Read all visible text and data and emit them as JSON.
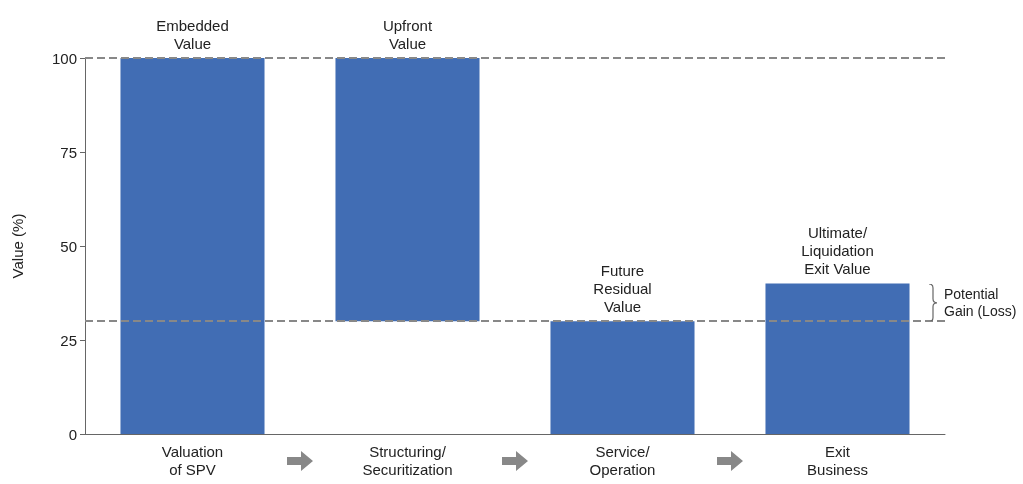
{
  "chart_data": {
    "type": "bar",
    "categories": [
      "Valuation\nof SPV",
      "Structuring/\nSecuritization",
      "Service/\nOperation",
      "Exit\nBusiness"
    ],
    "values": [
      100,
      70,
      30,
      40
    ],
    "base": [
      0,
      30,
      0,
      0
    ],
    "color": "#416db4",
    "ylabel": "Value (%)",
    "ylim": [
      0,
      100
    ],
    "yticks": [
      0,
      25,
      50,
      75,
      100
    ],
    "grid": false,
    "ref_lines": [
      {
        "axis": "y",
        "value": 100,
        "label": null,
        "color": "#888888",
        "line_style": "dashed"
      },
      {
        "axis": "y",
        "value": 30,
        "label": null,
        "color": "#888888",
        "line_style": "dashed"
      }
    ],
    "annotations": [
      {
        "text": "Embedded\nValue",
        "x": "Valuation\nof SPV",
        "y": 100
      },
      {
        "text": "Upfront\nValue",
        "x": "Structuring/\nSecuritization",
        "y": 100
      },
      {
        "text": "Future\nResidual\nValue",
        "x": "Service/\nOperation",
        "y": 30
      },
      {
        "text": "Ultimate/\nLiquidation\nExit Value",
        "x": "Exit\nBusiness",
        "y": 40
      },
      "Potential\nGain (Loss)"
    ]
  }
}
